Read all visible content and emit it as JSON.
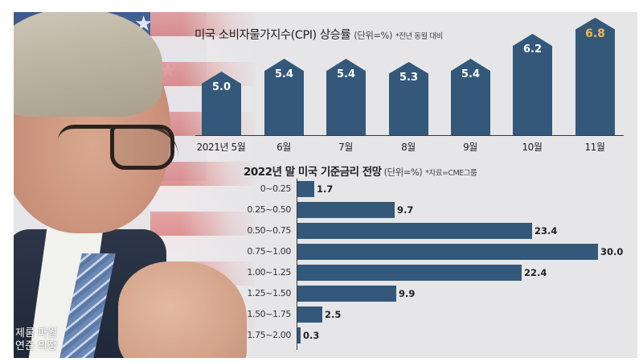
{
  "photo": {
    "caption_line1": "제롬 파월",
    "caption_line2": "연준 의장"
  },
  "colors": {
    "bar": "#33587a",
    "highlight_label": "#f5b94d",
    "panel_bg": "#e6e6e8"
  },
  "chart_data": [
    {
      "type": "bar",
      "title": "미국 소비자물가지수(CPI) 상승률",
      "unit": "(단위=%)",
      "note": "*전년 동월 대비",
      "categories": [
        "2021년 5월",
        "6월",
        "7월",
        "8월",
        "9월",
        "10월",
        "11월"
      ],
      "values": [
        5.0,
        5.4,
        5.4,
        5.3,
        5.4,
        6.2,
        6.8
      ],
      "labels": [
        "5.0",
        "5.4",
        "5.4",
        "5.3",
        "5.4",
        "6.2",
        "6.8"
      ],
      "highlight_index": 6,
      "xlabel": "",
      "ylabel": "",
      "grid": false,
      "orientation": "vertical"
    },
    {
      "type": "bar",
      "title": "2022년 말 미국 기준금리 전망",
      "unit": "(단위=%)",
      "note": "*자료=CME그룹",
      "categories": [
        "0~0.25",
        "0.25~0.50",
        "0.50~0.75",
        "0.75~1.00",
        "1.00~1.25",
        "1.25~1.50",
        "1.50~1.75",
        "1.75~2.00"
      ],
      "values": [
        1.7,
        9.7,
        23.4,
        30.0,
        22.4,
        9.9,
        2.5,
        0.3
      ],
      "labels": [
        "1.7",
        "9.7",
        "23.4",
        "30.0",
        "22.4",
        "9.9",
        "2.5",
        "0.3"
      ],
      "xlabel": "",
      "ylabel": "",
      "grid": false,
      "orientation": "horizontal"
    }
  ]
}
